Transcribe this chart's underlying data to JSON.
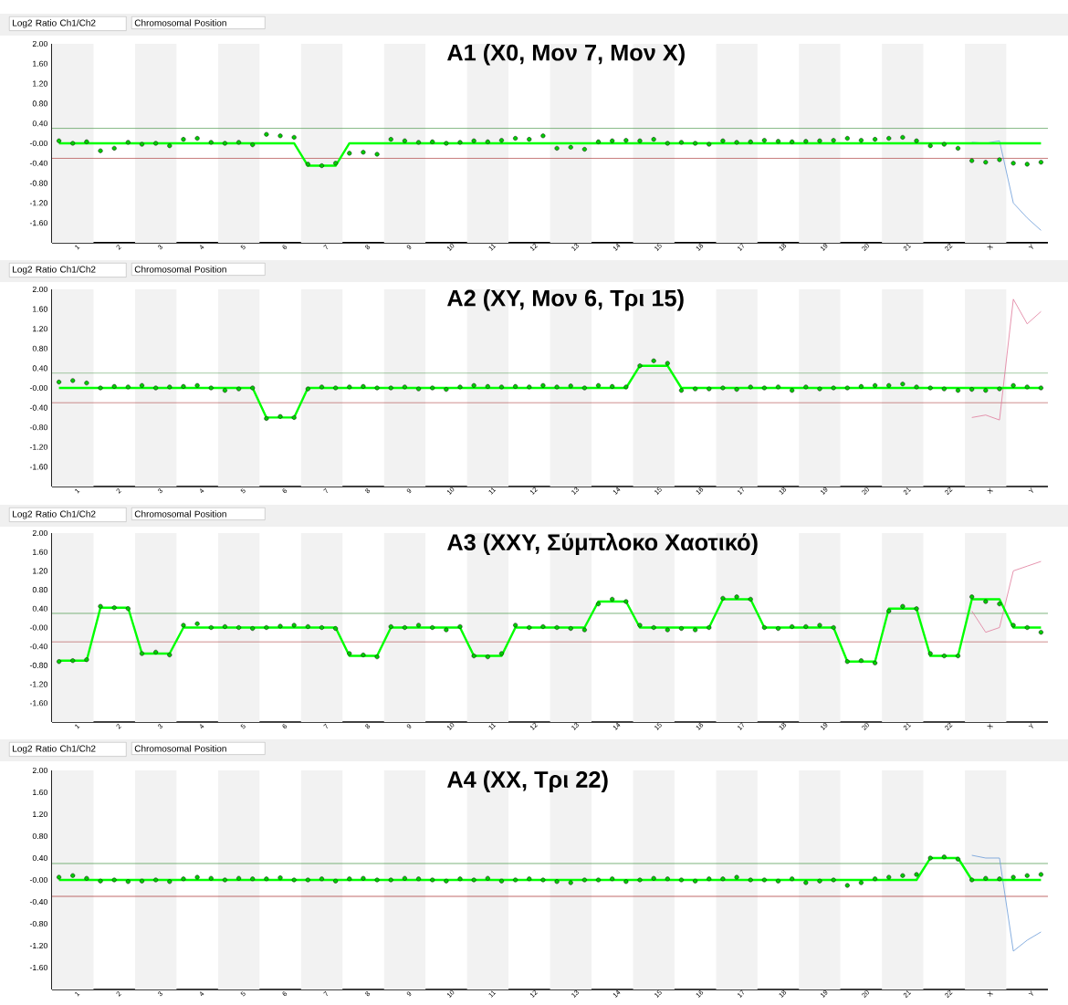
{
  "chart_data": [
    {
      "type": "line",
      "title": "A1 (X0, Μον 7, Μον X)",
      "annotations": [
        "Log2 Ratio Ch1/Ch2",
        "Chromosomal Position"
      ],
      "categories": [
        null,
        "1",
        null,
        null,
        "2",
        null,
        null,
        "3",
        null,
        null,
        "4",
        null,
        null,
        "5",
        null,
        null,
        "6",
        null,
        null,
        "7",
        null,
        null,
        "8",
        null,
        null,
        "9",
        null,
        null,
        "10",
        null,
        null,
        "11",
        null,
        null,
        "12",
        null,
        null,
        "13",
        null,
        null,
        "14",
        null,
        null,
        "15",
        null,
        null,
        "16",
        null,
        null,
        "17",
        null,
        null,
        "18",
        null,
        null,
        "19",
        null,
        null,
        "20",
        null,
        null,
        "21",
        null,
        null,
        "22",
        null,
        null,
        "X",
        null,
        null,
        "Y",
        null
      ],
      "ylim": [
        -2.0,
        2.0
      ],
      "yticks": [
        {
          "value": 2.0,
          "label": "2.00"
        },
        {
          "value": 1.6,
          "label": "1.60"
        },
        {
          "value": 1.2,
          "label": "1.20"
        },
        {
          "value": 0.8,
          "label": "0.80"
        },
        {
          "value": 0.4,
          "label": "0.40"
        },
        {
          "value": 0,
          "label": "-0.00"
        },
        {
          "value": -0.4,
          "label": "-0.40"
        },
        {
          "value": -0.8,
          "label": "-0.80"
        },
        {
          "value": -1.2,
          "label": "-1.20"
        },
        {
          "value": -1.6,
          "label": "-1.60"
        }
      ],
      "ref_lines": [
        {
          "axis": "y",
          "value": 0.3,
          "color": "#5aa05a"
        },
        {
          "axis": "y",
          "value": -0.3,
          "color": "#b04545"
        }
      ],
      "series": [
        {
          "type": "line",
          "color": "#6a9ad8",
          "values": [
            null,
            null,
            null,
            null,
            null,
            null,
            null,
            null,
            null,
            null,
            null,
            null,
            null,
            null,
            null,
            null,
            null,
            null,
            null,
            null,
            null,
            null,
            null,
            null,
            null,
            null,
            null,
            null,
            null,
            null,
            null,
            null,
            null,
            null,
            null,
            null,
            null,
            null,
            null,
            null,
            null,
            null,
            null,
            null,
            null,
            null,
            null,
            null,
            null,
            null,
            null,
            null,
            null,
            null,
            null,
            null,
            null,
            null,
            null,
            null,
            null,
            null,
            null,
            null,
            null,
            null,
            0.02,
            0.0,
            0.05,
            -1.2,
            -1.5,
            -1.75
          ]
        },
        {
          "type": "scatter",
          "color": "#00cc00",
          "marker": "circle",
          "values": [
            0.05,
            0.0,
            0.03,
            -0.15,
            -0.1,
            0.02,
            -0.02,
            0.0,
            -0.05,
            0.08,
            0.1,
            0.02,
            0.0,
            0.02,
            -0.03,
            0.18,
            0.15,
            0.12,
            -0.42,
            -0.45,
            -0.4,
            -0.2,
            -0.18,
            -0.22,
            0.08,
            0.05,
            0.02,
            0.03,
            0.0,
            0.02,
            0.05,
            0.03,
            0.06,
            0.1,
            0.08,
            0.15,
            -0.1,
            -0.08,
            -0.12,
            0.03,
            0.05,
            0.06,
            0.05,
            0.08,
            0.0,
            0.02,
            0.0,
            -0.02,
            0.05,
            0.02,
            0.03,
            0.06,
            0.04,
            0.03,
            0.04,
            0.05,
            0.06,
            0.1,
            0.06,
            0.08,
            0.1,
            0.12,
            0.05,
            -0.05,
            -0.02,
            -0.1,
            -0.35,
            -0.38,
            -0.33,
            -0.4,
            -0.42,
            -0.38
          ]
        },
        {
          "color": "#00ff00",
          "values": [
            0,
            0,
            0,
            0,
            0,
            0,
            0,
            0,
            0,
            0,
            0,
            0,
            0,
            0,
            0,
            0,
            0,
            0,
            -0.45,
            -0.45,
            -0.45,
            0,
            0,
            0,
            0,
            0,
            0,
            0,
            0,
            0,
            0,
            0,
            0,
            0,
            0,
            0,
            0,
            0,
            0,
            0,
            0,
            0,
            0,
            0,
            0,
            0,
            0,
            0,
            0,
            0,
            0,
            0,
            0,
            0,
            0,
            0,
            0,
            0,
            0,
            0,
            0,
            0,
            0,
            0,
            0,
            0,
            0,
            0,
            0,
            0,
            0,
            0
          ]
        }
      ]
    },
    {
      "type": "line",
      "title": "A2 (XY, Μον 6, Τρι 15)",
      "annotations": [
        "Log2 Ratio Ch1/Ch2",
        "Chromosomal Position"
      ],
      "categories": [
        null,
        "1",
        null,
        null,
        "2",
        null,
        null,
        "3",
        null,
        null,
        "4",
        null,
        null,
        "5",
        null,
        null,
        "6",
        null,
        null,
        "7",
        null,
        null,
        "8",
        null,
        null,
        "9",
        null,
        null,
        "10",
        null,
        null,
        "11",
        null,
        null,
        "12",
        null,
        null,
        "13",
        null,
        null,
        "14",
        null,
        null,
        "15",
        null,
        null,
        "16",
        null,
        null,
        "17",
        null,
        null,
        "18",
        null,
        null,
        "19",
        null,
        null,
        "20",
        null,
        null,
        "21",
        null,
        null,
        "22",
        null,
        null,
        "X",
        null,
        null,
        "Y",
        null
      ],
      "ylim": [
        -2.0,
        2.0
      ],
      "yticks": [
        {
          "value": 2.0,
          "label": "2.00"
        },
        {
          "value": 1.6,
          "label": "1.60"
        },
        {
          "value": 1.2,
          "label": "1.20"
        },
        {
          "value": 0.8,
          "label": "0.80"
        },
        {
          "value": 0.4,
          "label": "0.40"
        },
        {
          "value": 0,
          "label": "-0.00"
        },
        {
          "value": -0.4,
          "label": "-0.40"
        },
        {
          "value": -0.8,
          "label": "-0.80"
        },
        {
          "value": -1.2,
          "label": "-1.20"
        },
        {
          "value": -1.6,
          "label": "-1.60"
        }
      ],
      "ref_lines": [
        {
          "axis": "y",
          "value": 0.3,
          "color": "#5aa05a"
        },
        {
          "axis": "y",
          "value": -0.3,
          "color": "#b04545"
        }
      ],
      "series": [
        {
          "type": "line",
          "color": "#e07a9a",
          "values": [
            null,
            null,
            null,
            null,
            null,
            null,
            null,
            null,
            null,
            null,
            null,
            null,
            null,
            null,
            null,
            null,
            null,
            null,
            null,
            null,
            null,
            null,
            null,
            null,
            null,
            null,
            null,
            null,
            null,
            null,
            null,
            null,
            null,
            null,
            null,
            null,
            null,
            null,
            null,
            null,
            null,
            null,
            null,
            null,
            null,
            null,
            null,
            null,
            null,
            null,
            null,
            null,
            null,
            null,
            null,
            null,
            null,
            null,
            null,
            null,
            null,
            null,
            null,
            null,
            null,
            null,
            -0.6,
            -0.55,
            -0.65,
            1.8,
            1.3,
            1.55
          ]
        },
        {
          "type": "scatter",
          "color": "#00cc00",
          "marker": "circle",
          "values": [
            0.12,
            0.15,
            0.1,
            0.0,
            0.03,
            0.02,
            0.05,
            0.0,
            0.02,
            0.03,
            0.05,
            0.0,
            -0.05,
            -0.02,
            0.0,
            -0.62,
            -0.58,
            -0.6,
            -0.02,
            0.02,
            0.0,
            0.02,
            0.03,
            0.0,
            0.0,
            0.02,
            -0.02,
            0.0,
            -0.03,
            0.02,
            0.05,
            0.03,
            0.02,
            0.03,
            0.02,
            0.05,
            0.02,
            0.04,
            0.0,
            0.05,
            0.03,
            0.02,
            0.45,
            0.55,
            0.5,
            -0.05,
            -0.02,
            -0.02,
            0.0,
            -0.03,
            0.02,
            0.0,
            0.02,
            -0.05,
            0.02,
            -0.02,
            0.0,
            0.0,
            0.03,
            0.05,
            0.05,
            0.08,
            0.02,
            0.0,
            -0.02,
            -0.05,
            -0.03,
            -0.05,
            -0.02,
            0.05,
            0.02,
            0.0
          ]
        },
        {
          "color": "#00ff00",
          "values": [
            0,
            0,
            0,
            0,
            0,
            0,
            0,
            0,
            0,
            0,
            0,
            0,
            0,
            0,
            0,
            -0.6,
            -0.6,
            -0.6,
            0,
            0,
            0,
            0,
            0,
            0,
            0,
            0,
            0,
            0,
            0,
            0,
            0,
            0,
            0,
            0,
            0,
            0,
            0,
            0,
            0,
            0,
            0,
            0,
            0.45,
            0.45,
            0.45,
            0,
            0,
            0,
            0,
            0,
            0,
            0,
            0,
            0,
            0,
            0,
            0,
            0,
            0,
            0,
            0,
            0,
            0,
            0,
            0,
            0,
            0,
            0,
            0,
            0,
            0,
            0
          ]
        }
      ]
    },
    {
      "type": "line",
      "title": "A3 (XXY, Σύμπλοκο Χαοτικό)",
      "annotations": [
        "Log2 Ratio Ch1/Ch2",
        "Chromosomal Position"
      ],
      "categories": [
        null,
        "1",
        null,
        null,
        "2",
        null,
        null,
        "3",
        null,
        null,
        "4",
        null,
        null,
        "5",
        null,
        null,
        "6",
        null,
        null,
        "7",
        null,
        null,
        "8",
        null,
        null,
        "9",
        null,
        null,
        "10",
        null,
        null,
        "11",
        null,
        null,
        "12",
        null,
        null,
        "13",
        null,
        null,
        "14",
        null,
        null,
        "15",
        null,
        null,
        "16",
        null,
        null,
        "17",
        null,
        null,
        "18",
        null,
        null,
        "19",
        null,
        null,
        "20",
        null,
        null,
        "21",
        null,
        null,
        "22",
        null,
        null,
        "X",
        null,
        null,
        "Y",
        null
      ],
      "ylim": [
        -2.0,
        2.0
      ],
      "yticks": [
        {
          "value": 2.0,
          "label": "2.00"
        },
        {
          "value": 1.6,
          "label": "1.60"
        },
        {
          "value": 1.2,
          "label": "1.20"
        },
        {
          "value": 0.8,
          "label": "0.80"
        },
        {
          "value": 0.4,
          "label": "0.40"
        },
        {
          "value": 0,
          "label": "-0.00"
        },
        {
          "value": -0.4,
          "label": "-0.40"
        },
        {
          "value": -0.8,
          "label": "-0.80"
        },
        {
          "value": -1.2,
          "label": "-1.20"
        },
        {
          "value": -1.6,
          "label": "-1.60"
        }
      ],
      "ref_lines": [
        {
          "axis": "y",
          "value": 0.3,
          "color": "#5aa05a"
        },
        {
          "axis": "y",
          "value": -0.3,
          "color": "#b04545"
        }
      ],
      "series": [
        {
          "type": "line",
          "color": "#e07a9a",
          "values": [
            null,
            null,
            null,
            null,
            null,
            null,
            null,
            null,
            null,
            null,
            null,
            null,
            null,
            null,
            null,
            null,
            null,
            null,
            null,
            null,
            null,
            null,
            null,
            null,
            null,
            null,
            null,
            null,
            null,
            null,
            null,
            null,
            null,
            null,
            null,
            null,
            null,
            null,
            null,
            null,
            null,
            null,
            null,
            null,
            null,
            null,
            null,
            null,
            null,
            null,
            null,
            null,
            null,
            null,
            null,
            null,
            null,
            null,
            null,
            null,
            null,
            null,
            null,
            null,
            null,
            null,
            0.35,
            -0.1,
            0.0,
            1.2,
            1.3,
            1.4
          ]
        },
        {
          "type": "scatter",
          "color": "#00cc00",
          "marker": "circle",
          "values": [
            -0.72,
            -0.7,
            -0.68,
            0.45,
            0.42,
            0.4,
            -0.55,
            -0.52,
            -0.58,
            0.05,
            0.08,
            0.0,
            0.02,
            0.0,
            -0.02,
            0.0,
            0.03,
            0.05,
            0.02,
            0.0,
            -0.02,
            -0.55,
            -0.58,
            -0.62,
            0.02,
            0.0,
            0.05,
            0.0,
            -0.05,
            0.02,
            -0.6,
            -0.62,
            -0.55,
            0.05,
            0.0,
            0.02,
            0.0,
            -0.02,
            -0.05,
            0.5,
            0.6,
            0.55,
            0.05,
            0.0,
            -0.05,
            -0.02,
            -0.05,
            0.0,
            0.62,
            0.65,
            0.6,
            0.0,
            -0.02,
            0.02,
            0.02,
            0.05,
            0.0,
            -0.72,
            -0.7,
            -0.75,
            0.35,
            0.45,
            0.4,
            -0.55,
            -0.6,
            -0.6,
            0.65,
            0.55,
            0.5,
            0.05,
            0.0,
            -0.1
          ]
        },
        {
          "color": "#00ff00",
          "values": [
            -0.7,
            -0.7,
            -0.7,
            0.42,
            0.42,
            0.42,
            -0.55,
            -0.55,
            -0.55,
            0,
            0,
            0,
            0,
            0,
            0,
            0,
            0,
            0,
            0,
            0,
            0,
            -0.6,
            -0.6,
            -0.6,
            0,
            0,
            0,
            0,
            0,
            0,
            -0.6,
            -0.6,
            -0.6,
            0,
            0,
            0,
            0,
            0,
            0,
            0.55,
            0.55,
            0.55,
            0,
            0,
            0,
            0,
            0,
            0,
            0.6,
            0.6,
            0.6,
            0,
            0,
            0,
            0,
            0,
            0,
            -0.72,
            -0.72,
            -0.72,
            0.4,
            0.4,
            0.4,
            -0.6,
            -0.6,
            -0.6,
            0.6,
            0.6,
            0.6,
            0,
            0,
            0
          ]
        }
      ]
    },
    {
      "type": "line",
      "title": "A4 (XX, Τρι 22)",
      "annotations": [
        "Log2 Ratio Ch1/Ch2",
        "Chromosomal Position"
      ],
      "categories": [
        null,
        "1",
        null,
        null,
        "2",
        null,
        null,
        "3",
        null,
        null,
        "4",
        null,
        null,
        "5",
        null,
        null,
        "6",
        null,
        null,
        "7",
        null,
        null,
        "8",
        null,
        null,
        "9",
        null,
        null,
        "10",
        null,
        null,
        "11",
        null,
        null,
        "12",
        null,
        null,
        "13",
        null,
        null,
        "14",
        null,
        null,
        "15",
        null,
        null,
        "16",
        null,
        null,
        "17",
        null,
        null,
        "18",
        null,
        null,
        "19",
        null,
        null,
        "20",
        null,
        null,
        "21",
        null,
        null,
        "22",
        null,
        null,
        "X",
        null,
        null,
        "Y",
        null
      ],
      "ylim": [
        -2.0,
        2.0
      ],
      "yticks": [
        {
          "value": 2.0,
          "label": "2.00"
        },
        {
          "value": 1.6,
          "label": "1.60"
        },
        {
          "value": 1.2,
          "label": "1.20"
        },
        {
          "value": 0.8,
          "label": "0.80"
        },
        {
          "value": 0.4,
          "label": "0.40"
        },
        {
          "value": 0,
          "label": "-0.00"
        },
        {
          "value": -0.4,
          "label": "-0.40"
        },
        {
          "value": -0.8,
          "label": "-0.80"
        },
        {
          "value": -1.2,
          "label": "-1.20"
        },
        {
          "value": -1.6,
          "label": "-1.60"
        }
      ],
      "ref_lines": [
        {
          "axis": "y",
          "value": 0.3,
          "color": "#5aa05a"
        },
        {
          "axis": "y",
          "value": -0.3,
          "color": "#b04545"
        }
      ],
      "series": [
        {
          "type": "line",
          "color": "#6a9ad8",
          "values": [
            null,
            null,
            null,
            null,
            null,
            null,
            null,
            null,
            null,
            null,
            null,
            null,
            null,
            null,
            null,
            null,
            null,
            null,
            null,
            null,
            null,
            null,
            null,
            null,
            null,
            null,
            null,
            null,
            null,
            null,
            null,
            null,
            null,
            null,
            null,
            null,
            null,
            null,
            null,
            null,
            null,
            null,
            null,
            null,
            null,
            null,
            null,
            null,
            null,
            null,
            null,
            null,
            null,
            null,
            null,
            null,
            null,
            null,
            null,
            null,
            null,
            null,
            null,
            null,
            null,
            null,
            0.45,
            0.4,
            0.4,
            -1.3,
            -1.1,
            -0.95
          ]
        },
        {
          "type": "scatter",
          "color": "#00cc00",
          "marker": "circle",
          "values": [
            0.05,
            0.08,
            0.03,
            -0.02,
            0.0,
            -0.03,
            -0.02,
            0.0,
            -0.03,
            0.02,
            0.05,
            0.03,
            0.0,
            0.03,
            0.02,
            0.02,
            0.04,
            0.0,
            0.0,
            0.02,
            -0.02,
            0.02,
            0.03,
            0.0,
            0.0,
            0.03,
            0.02,
            0.0,
            -0.02,
            0.02,
            0.0,
            0.03,
            -0.02,
            0.0,
            0.02,
            0.0,
            -0.03,
            -0.05,
            0.0,
            0.0,
            0.02,
            -0.03,
            0.0,
            0.03,
            0.02,
            0.0,
            -0.02,
            0.02,
            0.02,
            0.05,
            0.0,
            0.0,
            -0.02,
            0.02,
            -0.05,
            -0.02,
            0.0,
            -0.1,
            -0.05,
            0.02,
            0.05,
            0.08,
            0.1,
            0.4,
            0.42,
            0.38,
            0.0,
            0.03,
            0.02,
            0.05,
            0.08,
            0.1
          ]
        },
        {
          "color": "#00ff00",
          "values": [
            0,
            0,
            0,
            0,
            0,
            0,
            0,
            0,
            0,
            0,
            0,
            0,
            0,
            0,
            0,
            0,
            0,
            0,
            0,
            0,
            0,
            0,
            0,
            0,
            0,
            0,
            0,
            0,
            0,
            0,
            0,
            0,
            0,
            0,
            0,
            0,
            0,
            0,
            0,
            0,
            0,
            0,
            0,
            0,
            0,
            0,
            0,
            0,
            0,
            0,
            0,
            0,
            0,
            0,
            0,
            0,
            0,
            0,
            0,
            0,
            0,
            0,
            0,
            0.4,
            0.4,
            0.4,
            0,
            0,
            0,
            0,
            0,
            0
          ]
        }
      ]
    }
  ]
}
